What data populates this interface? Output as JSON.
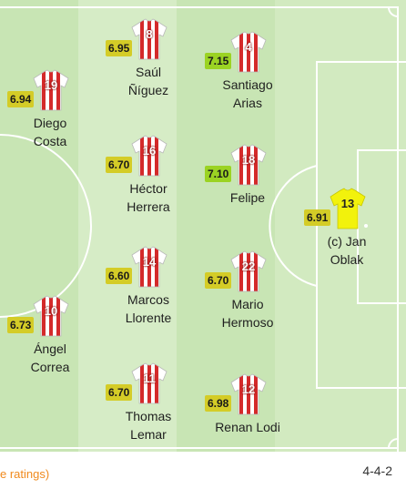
{
  "pitch": {
    "grass_light": "#c8e5b4",
    "grass_stripe": "#d6ecc6",
    "line_color": "#ffffff"
  },
  "rating_colors": {
    "yellow": "#d4cc27",
    "green": "#9bd323"
  },
  "players": [
    {
      "number": "19",
      "name_1": "Diego",
      "name_2": "Costa",
      "rating": "6.94",
      "rating_color": "#d4cc27",
      "kit": "outfield"
    },
    {
      "number": "10",
      "name_1": "Ángel",
      "name_2": "Correa",
      "rating": "6.73",
      "rating_color": "#d4cc27",
      "kit": "outfield"
    },
    {
      "number": "8",
      "name_1": "Saúl",
      "name_2": "Ñíguez",
      "rating": "6.95",
      "rating_color": "#d4cc27",
      "kit": "outfield"
    },
    {
      "number": "16",
      "name_1": "Héctor",
      "name_2": "Herrera",
      "rating": "6.70",
      "rating_color": "#d4cc27",
      "kit": "outfield"
    },
    {
      "number": "14",
      "name_1": "Marcos",
      "name_2": "Llorente",
      "rating": "6.60",
      "rating_color": "#d4cc27",
      "kit": "outfield"
    },
    {
      "number": "11",
      "name_1": "Thomas",
      "name_2": "Lemar",
      "rating": "6.70",
      "rating_color": "#d4cc27",
      "kit": "outfield"
    },
    {
      "number": "4",
      "name_1": "Santiago",
      "name_2": "Arias",
      "rating": "7.15",
      "rating_color": "#9bd323",
      "kit": "outfield"
    },
    {
      "number": "18",
      "name_1": "Felipe",
      "name_2": "",
      "rating": "7.10",
      "rating_color": "#9bd323",
      "kit": "outfield"
    },
    {
      "number": "22",
      "name_1": "Mario",
      "name_2": "Hermoso",
      "rating": "6.70",
      "rating_color": "#d4cc27",
      "kit": "outfield"
    },
    {
      "number": "12",
      "name_1": "Renan Lodi",
      "name_2": "",
      "rating": "6.98",
      "rating_color": "#d4cc27",
      "kit": "outfield"
    },
    {
      "number": "13",
      "name_1": "(c) Jan",
      "name_2": "Oblak",
      "rating": "6.91",
      "rating_color": "#d4cc27",
      "kit": "goalkeeper"
    }
  ],
  "footer": {
    "legend_text": "e ratings)",
    "formation": "4-4-2"
  }
}
